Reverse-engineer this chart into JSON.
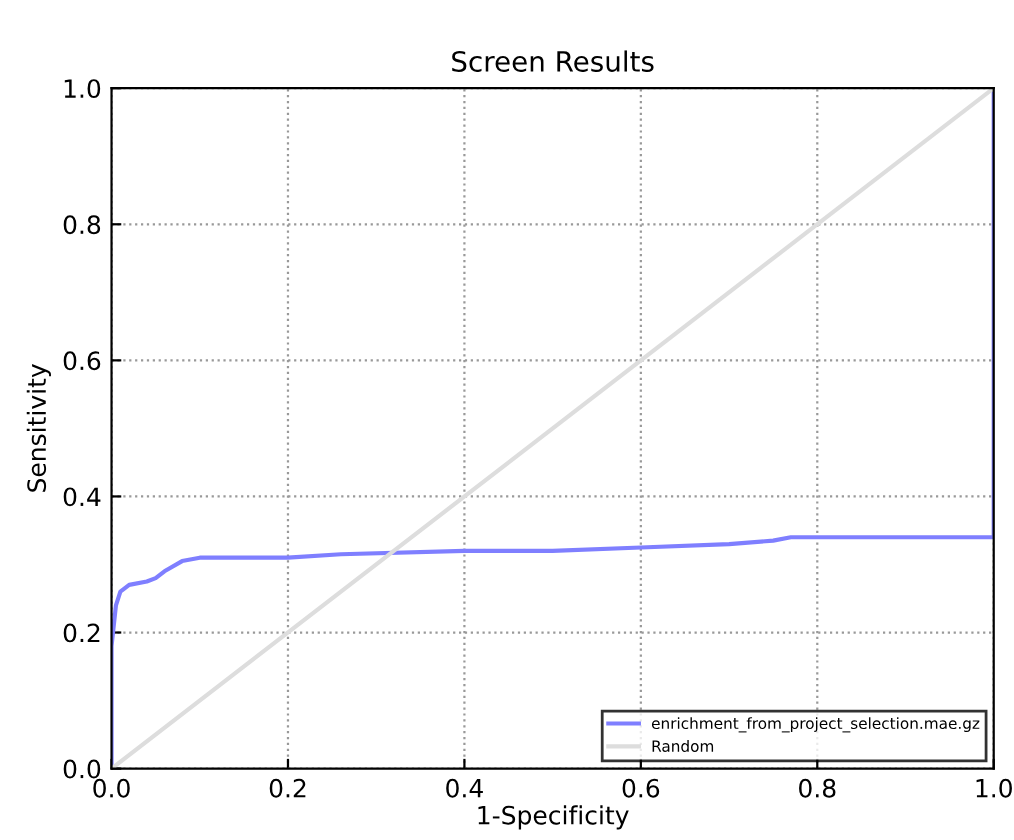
{
  "chart_data": {
    "type": "line",
    "title": "Screen Results",
    "xlabel": "1-Specificity",
    "ylabel": "Sensitivity",
    "xlim": [
      0,
      1
    ],
    "ylim": [
      0,
      1
    ],
    "xticks": [
      {
        "value": 0,
        "label": "0.0"
      },
      0.2,
      0.4,
      0.6,
      0.8,
      {
        "value": 1,
        "label": "1.0"
      }
    ],
    "yticks": [
      {
        "value": 0,
        "label": "0.0"
      },
      0.2,
      0.4,
      0.6,
      0.8,
      {
        "value": 1,
        "label": "1.0"
      }
    ],
    "grid": true,
    "legend": "bottom right",
    "series": [
      {
        "name": "enrichment_from_project_selection.mae.gz",
        "color": "#7f7fff",
        "x": [
          0,
          0,
          0.005,
          0.01,
          0.02,
          0.04,
          0.05,
          0.06,
          0.08,
          0.1,
          0.2,
          0.26,
          0.4,
          0.5,
          0.6,
          0.7,
          0.75,
          0.77,
          0.99,
          1.0,
          1.0
        ],
        "values": [
          0,
          0.18,
          0.24,
          0.26,
          0.27,
          0.275,
          0.28,
          0.29,
          0.305,
          0.31,
          0.31,
          0.315,
          0.32,
          0.32,
          0.325,
          0.33,
          0.335,
          0.34,
          0.34,
          0.34,
          1.0
        ]
      },
      {
        "name": "Random",
        "color": "#dddddd",
        "x": [
          0,
          1
        ],
        "values": [
          0,
          1
        ]
      }
    ]
  }
}
